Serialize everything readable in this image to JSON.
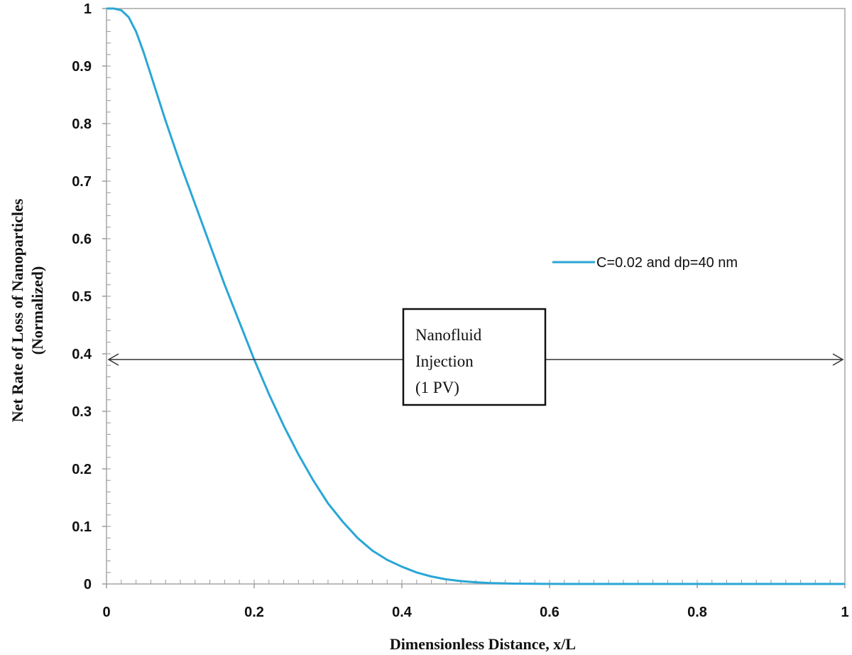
{
  "chart_data": {
    "type": "line",
    "xlabel": "Dimensionless Distance, x/L",
    "ylabel_line1": "Net Rate of Loss of Nanoparticles",
    "ylabel_line2": "(Normalized)",
    "xlim": [
      0,
      1
    ],
    "ylim": [
      0,
      1
    ],
    "x_ticks": [
      "0",
      "0.2",
      "0.4",
      "0.6",
      "0.8",
      "1"
    ],
    "y_ticks": [
      "0",
      "0.1",
      "0.2",
      "0.3",
      "0.4",
      "0.5",
      "0.6",
      "0.7",
      "0.8",
      "0.9",
      "1"
    ],
    "grid": false,
    "legend_position": "right",
    "series": [
      {
        "name": "C=0.02 and dp=40 nm",
        "color": "#2aa6d6",
        "x": [
          0,
          0.01,
          0.02,
          0.03,
          0.04,
          0.05,
          0.06,
          0.08,
          0.1,
          0.12,
          0.14,
          0.16,
          0.18,
          0.2,
          0.22,
          0.24,
          0.26,
          0.28,
          0.3,
          0.32,
          0.34,
          0.36,
          0.38,
          0.4,
          0.42,
          0.44,
          0.46,
          0.48,
          0.5,
          0.52,
          0.55,
          0.58,
          0.6,
          0.62,
          0.65,
          0.7,
          0.8,
          0.9,
          1.0
        ],
        "y": [
          1.0,
          1.0,
          0.997,
          0.985,
          0.96,
          0.925,
          0.885,
          0.805,
          0.73,
          0.66,
          0.59,
          0.52,
          0.455,
          0.39,
          0.33,
          0.275,
          0.225,
          0.18,
          0.14,
          0.108,
          0.08,
          0.058,
          0.042,
          0.03,
          0.02,
          0.013,
          0.008,
          0.005,
          0.003,
          0.0015,
          0.0006,
          0.0002,
          0.0001,
          0.0,
          0.0,
          0.0,
          0.0,
          0.0,
          0.0
        ]
      }
    ],
    "annotation": {
      "lines": [
        "Nanofluid",
        "Injection",
        "(1 PV)"
      ],
      "arrow_y": 0.39,
      "arrow_from_x": 0,
      "arrow_to_x": 1
    }
  }
}
